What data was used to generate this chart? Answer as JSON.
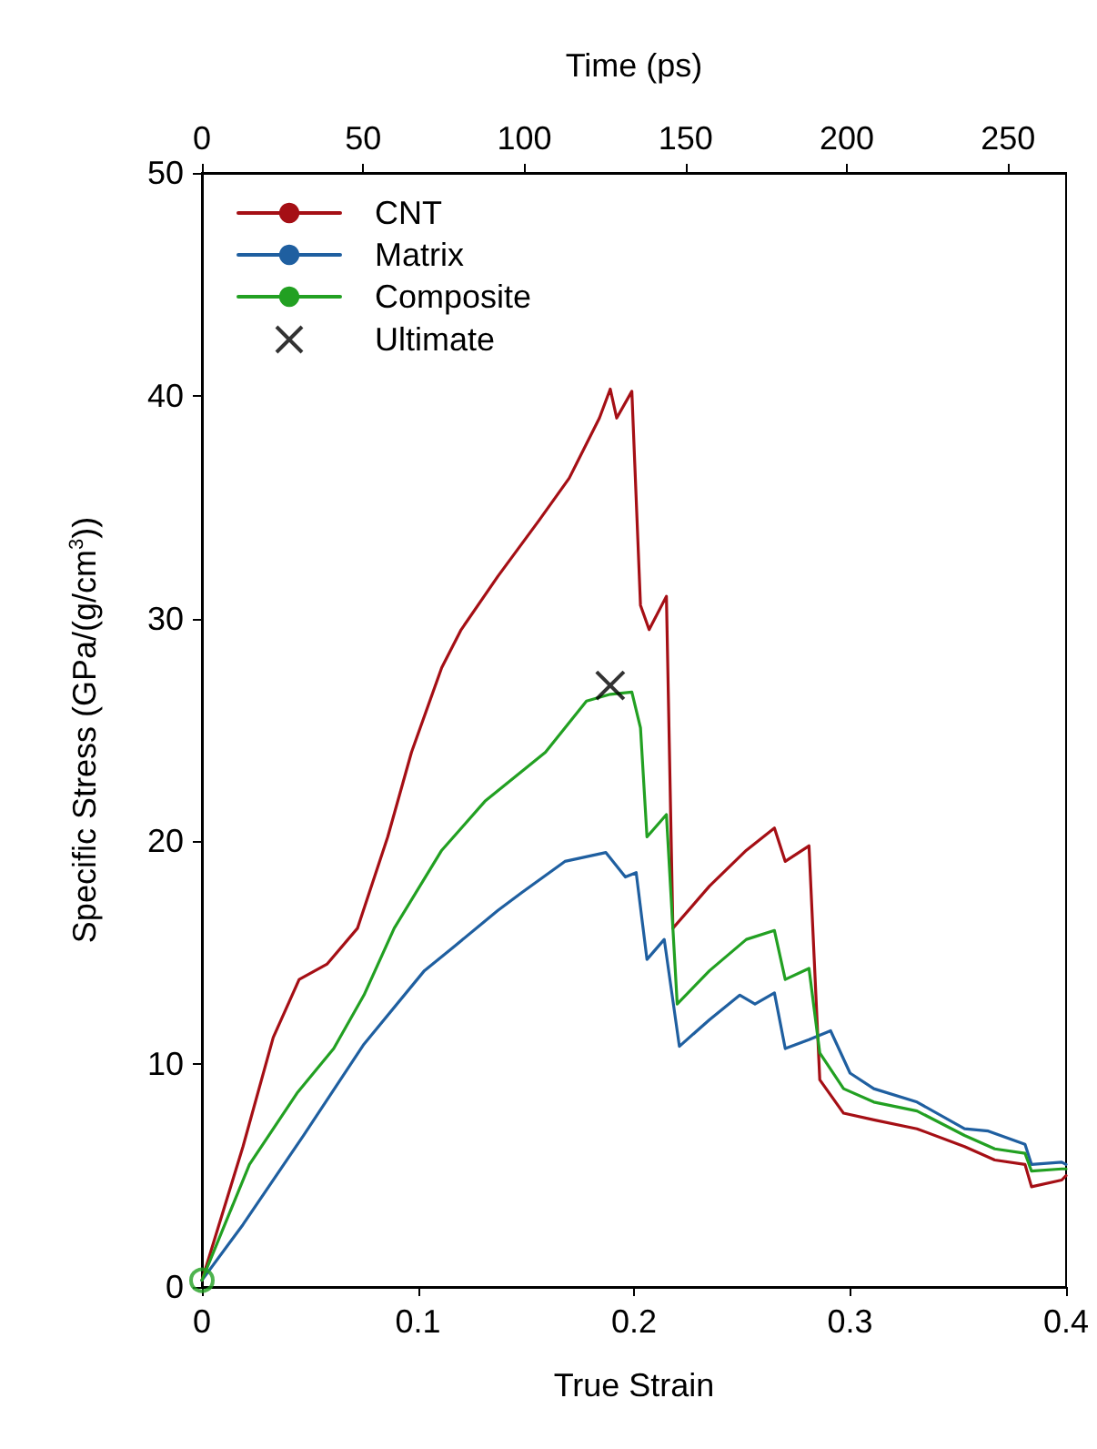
{
  "chart_data": {
    "type": "line",
    "xlabel": "True Strain",
    "ylabel": "Specific Stress (GPa/(g/cm$^{3}$))",
    "x2label": "Time (ps)",
    "xlim": [
      0,
      0.4
    ],
    "xticks": [
      0,
      0.1,
      0.2,
      0.3,
      0.4
    ],
    "ylim": [
      0,
      50
    ],
    "yticks": [
      0,
      10,
      20,
      30,
      40,
      50
    ],
    "x2lim": [
      0,
      268
    ],
    "x2ticks": [
      0,
      50,
      100,
      150,
      200,
      250
    ],
    "grid": false,
    "legend": "top left",
    "marker": "none",
    "line_style": "solid",
    "series": [
      {
        "name": "CNT",
        "color": "#a50f15",
        "x": [
          0,
          0.019,
          0.033,
          0.045,
          0.058,
          0.072,
          0.086,
          0.097,
          0.111,
          0.12,
          0.137,
          0.156,
          0.17,
          0.184,
          0.189,
          0.192,
          0.199,
          0.203,
          0.207,
          0.215,
          0.218,
          0.235,
          0.252,
          0.265,
          0.27,
          0.281,
          0.286,
          0.297,
          0.311,
          0.331,
          0.353,
          0.367,
          0.381,
          0.384,
          0.398,
          0.4
        ],
        "values": [
          0.3,
          6.3,
          11.2,
          13.8,
          14.5,
          16.1,
          20.2,
          24.0,
          27.8,
          29.5,
          31.9,
          34.4,
          36.3,
          39.0,
          40.3,
          39.0,
          40.2,
          30.6,
          29.5,
          31.0,
          16.1,
          18.0,
          19.6,
          20.6,
          19.1,
          19.8,
          9.3,
          7.8,
          7.5,
          7.1,
          6.3,
          5.7,
          5.5,
          4.5,
          4.8,
          5.0
        ]
      },
      {
        "name": "Matrix",
        "color": "#1f5fa0",
        "x": [
          0,
          0.019,
          0.047,
          0.075,
          0.103,
          0.117,
          0.137,
          0.148,
          0.168,
          0.187,
          0.196,
          0.201,
          0.206,
          0.214,
          0.221,
          0.235,
          0.249,
          0.256,
          0.265,
          0.27,
          0.281,
          0.291,
          0.3,
          0.311,
          0.331,
          0.353,
          0.364,
          0.381,
          0.384,
          0.398,
          0.4
        ],
        "values": [
          0.3,
          2.8,
          6.8,
          10.9,
          14.2,
          15.3,
          16.9,
          17.7,
          19.1,
          19.5,
          18.4,
          18.6,
          14.7,
          15.6,
          10.8,
          12.0,
          13.1,
          12.7,
          13.2,
          10.7,
          11.1,
          11.5,
          9.6,
          8.9,
          8.3,
          7.1,
          7.0,
          6.4,
          5.5,
          5.6,
          5.5
        ]
      },
      {
        "name": "Composite",
        "color": "#22a022",
        "x": [
          0,
          0.022,
          0.044,
          0.061,
          0.075,
          0.089,
          0.111,
          0.131,
          0.159,
          0.178,
          0.189,
          0.199,
          0.203,
          0.206,
          0.215,
          0.22,
          0.235,
          0.252,
          0.265,
          0.27,
          0.281,
          0.286,
          0.297,
          0.311,
          0.331,
          0.353,
          0.367,
          0.381,
          0.384,
          0.398,
          0.4
        ],
        "values": [
          0.3,
          5.5,
          8.7,
          10.7,
          13.1,
          16.1,
          19.6,
          21.8,
          24.0,
          26.3,
          26.6,
          26.7,
          25.1,
          20.2,
          21.2,
          12.7,
          14.2,
          15.6,
          16.0,
          13.8,
          14.3,
          10.5,
          8.9,
          8.3,
          7.9,
          6.8,
          6.2,
          6.0,
          5.2,
          5.3,
          5.3
        ]
      },
      {
        "name": "Ultimate",
        "type": "scatter",
        "marker": "cross",
        "color": "#000000",
        "x": [
          0.189
        ],
        "values": [
          27.0
        ]
      },
      {
        "type": "scatter",
        "marker": "circle",
        "color": "#22a022",
        "x": [
          0
        ],
        "values": [
          0.3
        ]
      }
    ]
  }
}
